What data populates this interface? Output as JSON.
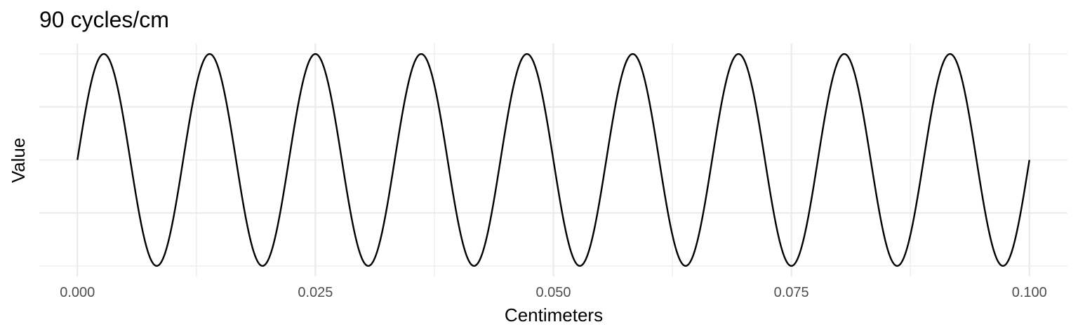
{
  "chart_data": {
    "type": "line",
    "title": "90 cycles/cm",
    "xlabel": "Centimeters",
    "ylabel": "Value",
    "xlim": [
      -0.004,
      0.104
    ],
    "ylim": [
      -1.1,
      1.1
    ],
    "x_ticks": [
      0.0,
      0.025,
      0.05,
      0.075,
      0.1
    ],
    "x_tick_labels": [
      "0.000",
      "0.025",
      "0.050",
      "0.075",
      "0.100"
    ],
    "y_ticks_major": [
      -0.5,
      0.5
    ],
    "y_ticks_minor": [
      -1.0,
      0.0,
      1.0
    ],
    "grid": true,
    "series": [
      {
        "function": "sin(2*pi*90*x)",
        "frequency": 90,
        "x_range": [
          0.0,
          0.1
        ],
        "color": "#000000"
      }
    ]
  }
}
